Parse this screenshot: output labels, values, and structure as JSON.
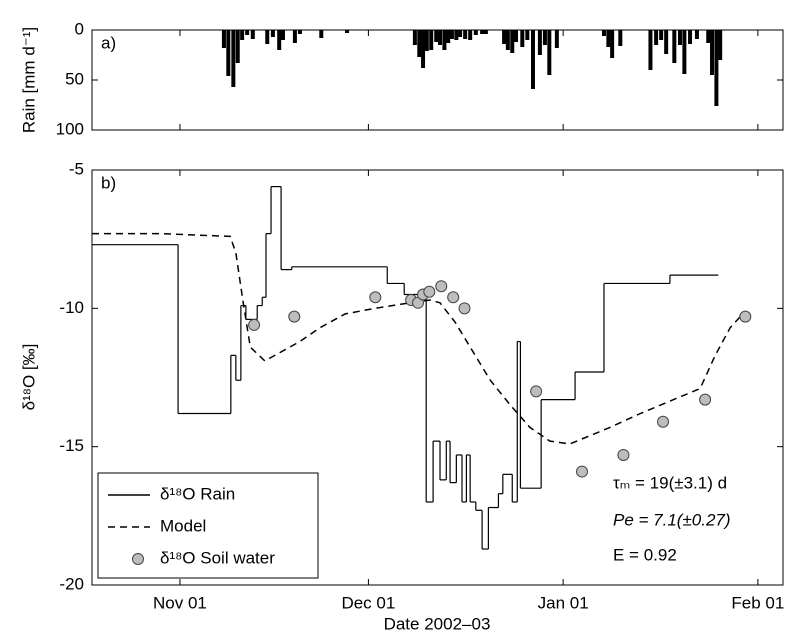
{
  "chart_data": [
    {
      "type": "bar",
      "panel_label": "a)",
      "ylabel": "Rain [mm d⁻¹]",
      "y_inverted": true,
      "color": "#000000",
      "xlim": [
        17,
        127
      ],
      "ylim": [
        0,
        100
      ],
      "yticks": [
        0,
        50,
        100
      ],
      "x": [
        38.0,
        38.7,
        39.5,
        40.2,
        40.9,
        41.7,
        42.6,
        44.9,
        45.8,
        46.8,
        47.4,
        49.3,
        50.1,
        53.5,
        57.6,
        68.4,
        69.1,
        69.7,
        70.3,
        71.0,
        71.8,
        72.4,
        73.1,
        73.7,
        74.3,
        75.0,
        75.6,
        76.4,
        77.2,
        78.1,
        79.1,
        79.7,
        82.6,
        83.2,
        83.9,
        84.5,
        85.5,
        86.3,
        87.2,
        88.3,
        89.1,
        89.8,
        91.0,
        98.5,
        99.2,
        99.8,
        101.1,
        105.9,
        106.8,
        107.6,
        108.4,
        109.7,
        110.6,
        111.3,
        112.2,
        113.3,
        115.1,
        115.7,
        116.4,
        117.0
      ],
      "values": [
        18,
        46,
        57,
        33,
        10,
        5,
        9,
        14,
        7,
        20,
        10,
        13,
        4,
        8,
        3,
        15,
        27,
        38,
        21,
        20,
        12,
        15,
        20,
        13,
        9,
        10,
        7,
        9,
        10,
        5,
        4,
        4,
        14,
        20,
        23,
        12,
        17,
        10,
        59,
        25,
        15,
        45,
        18,
        6,
        17,
        28,
        16,
        40,
        15,
        10,
        24,
        33,
        15,
        44,
        14,
        9,
        13,
        45,
        76,
        30
      ]
    },
    {
      "type": "line",
      "panel_label": "b)",
      "xlabel": "Date 2002–03",
      "ylabel": "δ¹⁸O [‰]",
      "xlim": [
        17,
        127
      ],
      "ylim": [
        -20,
        -5
      ],
      "yticks": [
        -20,
        -15,
        -10,
        -5
      ],
      "xticks": [
        {
          "value": 31,
          "label": "Nov 01"
        },
        {
          "value": 61,
          "label": "Dec 01"
        },
        {
          "value": 92,
          "label": "Jan 01"
        },
        {
          "value": 123,
          "label": "Feb 01"
        }
      ],
      "legend": "lower left",
      "series": [
        {
          "name": "δ¹⁸O Rain",
          "style": "step",
          "color": "#000000",
          "x": [
            17.0,
            30.7,
            39.1,
            39.9,
            40.7,
            41.5,
            43.3,
            44.1,
            44.7,
            45.5,
            47.1,
            48.8,
            64.0,
            66.7,
            70.2,
            71.3,
            72.4,
            73.4,
            74.0,
            75.0,
            75.9,
            76.6,
            77.2,
            78.1,
            79.1,
            80.1,
            81.7,
            82.4,
            83.9,
            84.7,
            85.2,
            88.5,
            93.9,
            98.5,
            109.0,
            116.7
          ],
          "values": [
            -7.7,
            -13.8,
            -11.7,
            -12.6,
            -9.9,
            -10.4,
            -9.9,
            -9.6,
            -7.3,
            -5.6,
            -8.6,
            -8.5,
            -9.1,
            -9.5,
            -17.0,
            -14.8,
            -16.2,
            -14.8,
            -16.3,
            -15.3,
            -17.0,
            -15.3,
            -17.0,
            -17.3,
            -18.7,
            -17.2,
            -16.7,
            -16.0,
            -17.0,
            -11.2,
            -16.5,
            -13.3,
            -12.3,
            -9.1,
            -8.8,
            -8.8
          ]
        },
        {
          "name": "Model",
          "style": "dashed",
          "color": "#000000",
          "x": [
            17.0,
            27.8,
            39.0,
            39.9,
            41.0,
            42.2,
            44.5,
            46.9,
            50.1,
            53.3,
            57.3,
            62.1,
            67.6,
            70.8,
            72.4,
            74.8,
            77.2,
            80.4,
            83.6,
            86.7,
            89.9,
            93.1,
            96.3,
            99.5,
            104.3,
            110.6,
            113.8,
            116.2,
            118.6,
            121.0
          ],
          "values": [
            -7.3,
            -7.3,
            -7.4,
            -8.0,
            -9.7,
            -11.4,
            -11.9,
            -11.6,
            -11.2,
            -10.7,
            -10.2,
            -10.0,
            -9.8,
            -9.7,
            -9.8,
            -10.5,
            -11.4,
            -12.6,
            -13.5,
            -14.3,
            -14.8,
            -14.9,
            -14.6,
            -14.3,
            -13.8,
            -13.2,
            -12.9,
            -11.7,
            -10.7,
            -10.1
          ]
        },
        {
          "name": "δ¹⁸O Soil water",
          "style": "markers",
          "color": "#bdbdbd",
          "x": [
            42.8,
            49.2,
            62.1,
            67.8,
            68.9,
            69.7,
            70.7,
            72.6,
            74.5,
            76.3,
            87.7,
            95.0,
            101.6,
            107.9,
            114.6,
            121.0
          ],
          "values": [
            -10.6,
            -10.3,
            -9.6,
            -9.7,
            -9.8,
            -9.5,
            -9.4,
            -9.2,
            -9.6,
            -10.0,
            -13.0,
            -15.9,
            -15.3,
            -14.1,
            -13.3,
            -10.3
          ]
        }
      ],
      "annotations": [
        "τₘ = 19(±3.1) d",
        "Pe = 7.1(±0.27)",
        "E = 0.92"
      ]
    }
  ]
}
